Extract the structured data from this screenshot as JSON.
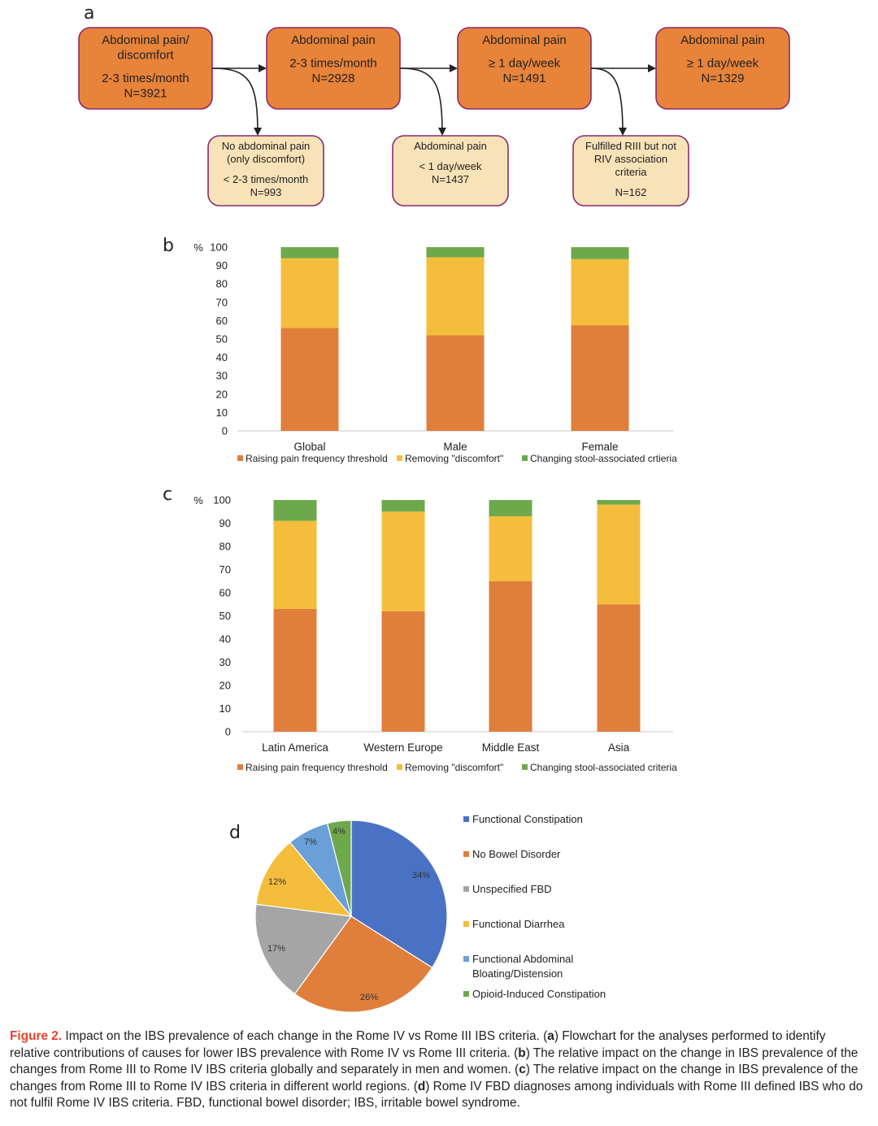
{
  "panel_labels": {
    "a": "a",
    "b": "b",
    "c": "c",
    "d": "d"
  },
  "flowchart": {
    "main_boxes": [
      {
        "lines": [
          "Abdominal pain/",
          "discomfort",
          "",
          "2-3 times/month",
          "N=3921"
        ]
      },
      {
        "lines": [
          "Abdominal pain",
          "",
          "2-3 times/month",
          "N=2928"
        ]
      },
      {
        "lines": [
          "Abdominal pain",
          "",
          "≥ 1 day/week",
          "N=1491"
        ]
      },
      {
        "lines": [
          "Abdominal pain",
          "",
          "≥ 1 day/week",
          "N=1329"
        ]
      }
    ],
    "side_boxes": [
      {
        "lines": [
          "No abdominal pain",
          "(only discomfort)",
          "",
          "< 2-3 times/month",
          "N=993"
        ]
      },
      {
        "lines": [
          "Abdominal pain",
          "",
          "< 1 day/week",
          "N=1437"
        ]
      },
      {
        "lines": [
          "Fulfilled RIII but not",
          "RIV association",
          "criteria",
          "",
          "N=162"
        ]
      }
    ],
    "colors": {
      "main": "#e8833a",
      "main_border": "#8b2a6e",
      "side": "#f8e3b8",
      "side_border": "#8b2a6e"
    }
  },
  "chart_data": [
    {
      "type": "bar",
      "stacked": true,
      "panel": "b",
      "categories": [
        "Global",
        "Male",
        "Female"
      ],
      "series": [
        {
          "name": "Raising pain frequency threshold",
          "color": "#e07e3c",
          "values": [
            56,
            52,
            57.5
          ]
        },
        {
          "name": "Removing \"discomfort\"",
          "color": "#f4be3c",
          "values": [
            38,
            42.5,
            36
          ]
        },
        {
          "name": "Changing stool-associated crtieria",
          "color": "#6ea84c",
          "values": [
            6,
            5.5,
            6.5
          ]
        }
      ],
      "ylabel": "%",
      "ylim": [
        0,
        100
      ],
      "yticks": [
        0,
        10,
        20,
        30,
        40,
        50,
        60,
        70,
        80,
        90,
        100
      ],
      "legend": "bottom"
    },
    {
      "type": "bar",
      "stacked": true,
      "panel": "c",
      "categories": [
        "Latin America",
        "Western Europe",
        "Middle East",
        "Asia"
      ],
      "series": [
        {
          "name": "Raising pain frequency threshold",
          "color": "#e07e3c",
          "values": [
            53,
            52,
            65,
            55
          ]
        },
        {
          "name": "Removing \"discomfort\"",
          "color": "#f4be3c",
          "values": [
            38,
            43,
            28,
            43
          ]
        },
        {
          "name": "Changing stool-associated criteria",
          "color": "#6ea84c",
          "values": [
            9,
            5,
            7,
            2
          ]
        }
      ],
      "ylabel": "%",
      "ylim": [
        0,
        100
      ],
      "yticks": [
        0,
        10,
        20,
        30,
        40,
        50,
        60,
        70,
        80,
        90,
        100
      ],
      "legend": "bottom"
    },
    {
      "type": "pie",
      "panel": "d",
      "labels": [
        "Functional Constipation",
        "No Bowel Disorder",
        "Unspecified FBD",
        "Functional Diarrhea",
        "Functional Abdominal Bloating/Distension",
        "Opioid-Induced Constipation"
      ],
      "legend_lines": [
        [
          "Functional Constipation"
        ],
        [
          "No Bowel Disorder"
        ],
        [
          "Unspecified FBD"
        ],
        [
          "Functional Diarrhea"
        ],
        [
          "Functional Abdominal",
          "Bloating/Distension"
        ],
        [
          "Opioid-Induced Constipation"
        ]
      ],
      "values": [
        34,
        26,
        17,
        12,
        7,
        4
      ],
      "value_labels": [
        "34%",
        "26%",
        "17%",
        "12%",
        "7%",
        "4%"
      ],
      "colors": [
        "#4a72c4",
        "#e07e3c",
        "#a5a5a5",
        "#f4be3c",
        "#6a9fd8",
        "#6ea84c"
      ],
      "legend": "right"
    }
  ],
  "caption": {
    "figure_label": "Figure 2.",
    "intro": "Impact on the IBS prevalence of each change in the Rome IV vs Rome III IBS criteria. (",
    "a_letter": "a",
    "a_text": ") Flowchart for the analyses performed to identify relative contributions of causes for lower IBS prevalence with Rome IV vs Rome III criteria. (",
    "b_letter": "b",
    "b_text": ") The relative impact on the change in IBS prevalence of the changes from Rome III to Rome IV IBS criteria globally and separately in men and women. (",
    "c_letter": "c",
    "c_text": ") The relative impact on the change in IBS prevalence of the changes from Rome III to Rome IV IBS criteria in different world regions. (",
    "d_letter": "d",
    "d_text": ") Rome IV FBD diagnoses among individuals with Rome III defined IBS who do not fulfil Rome IV IBS criteria. FBD, functional bowel disorder; IBS, irritable bowel syndrome."
  }
}
